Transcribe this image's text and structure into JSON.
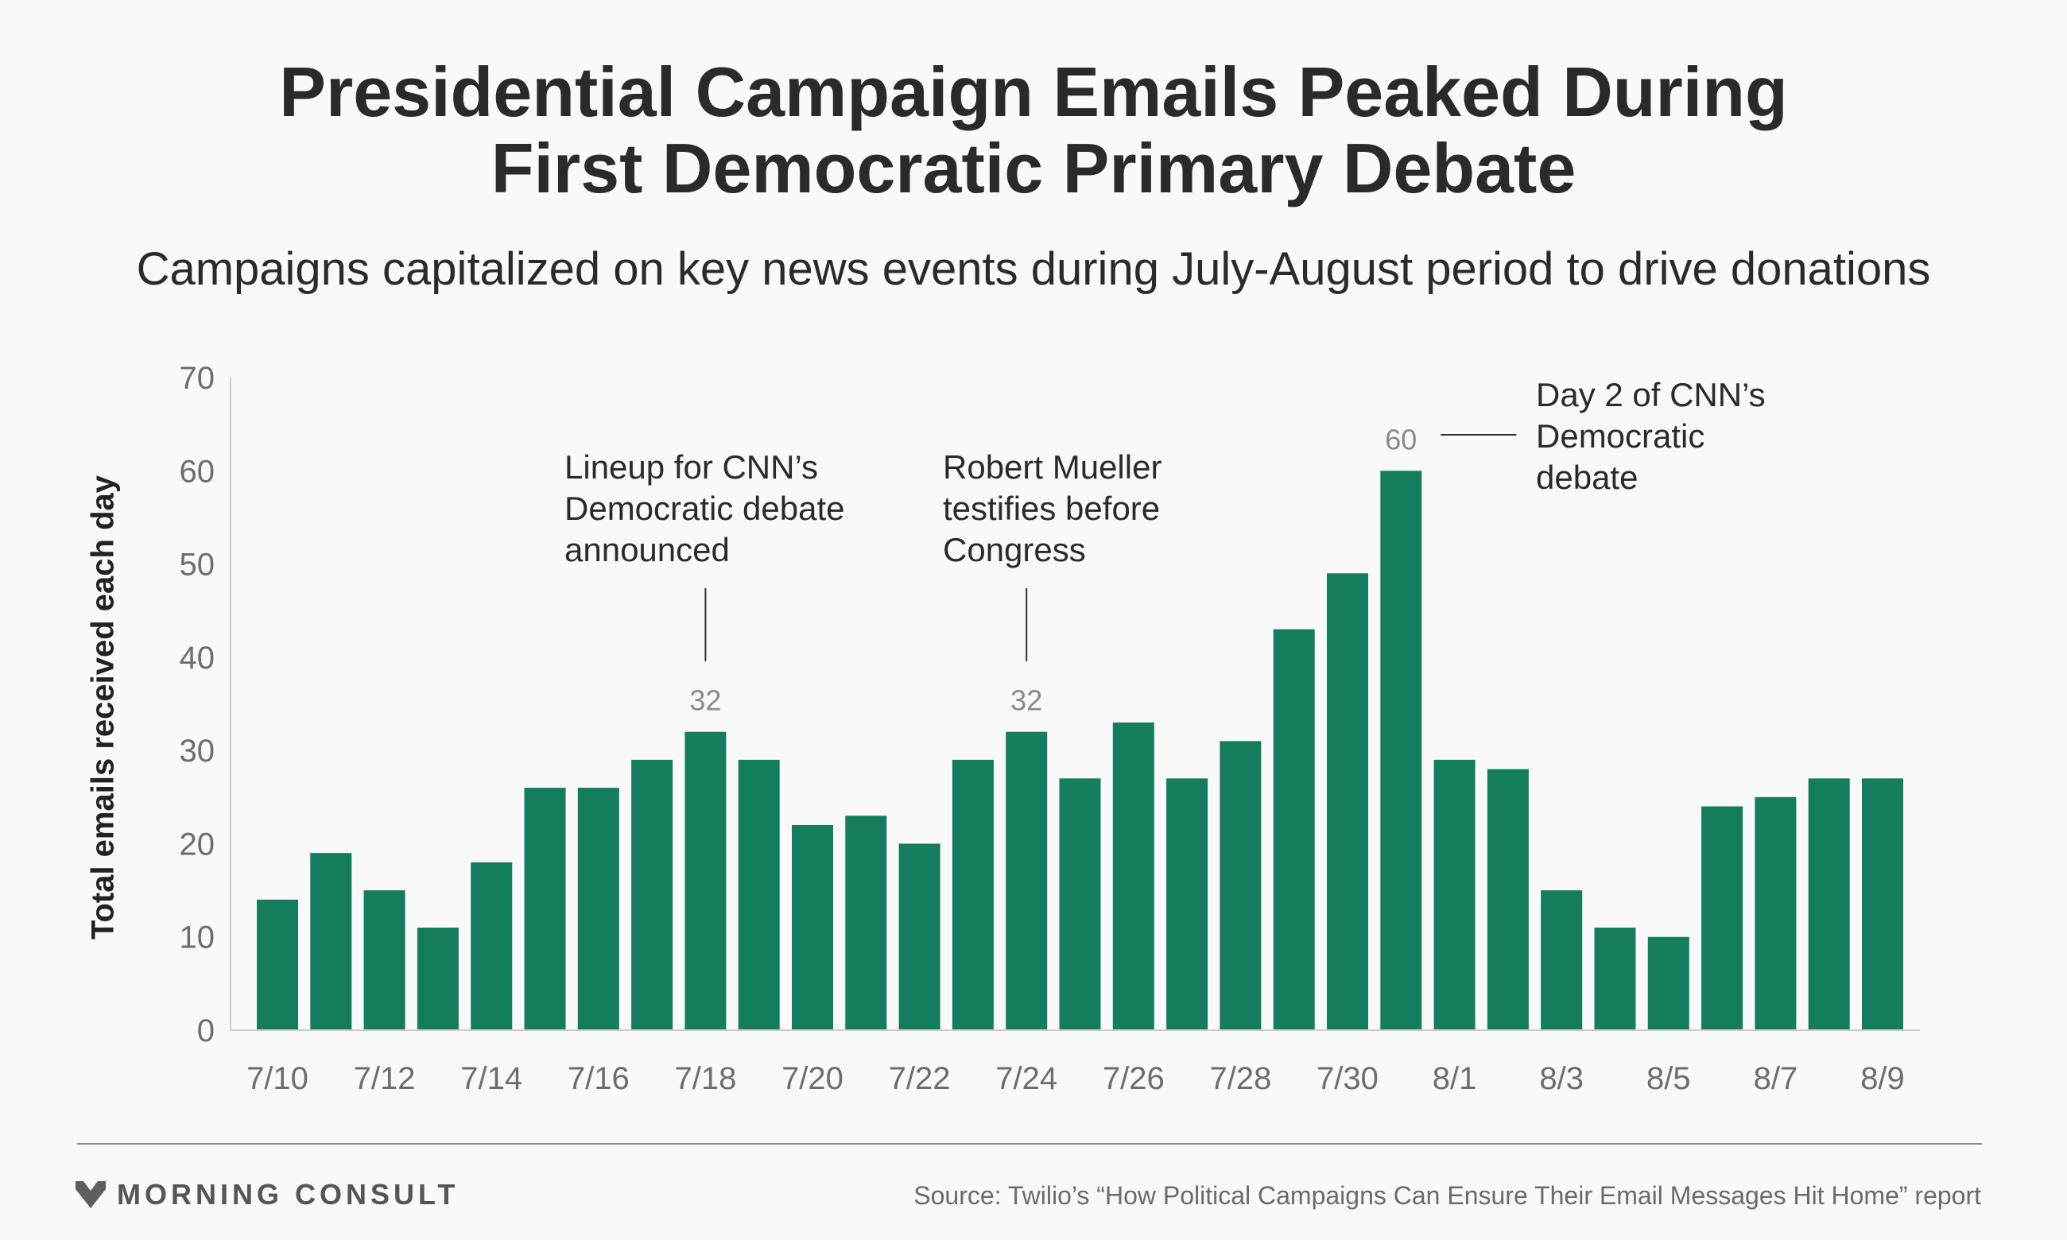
{
  "title_line1": "Presidential Campaign Emails Peaked During",
  "title_line2": "First Democratic Primary Debate",
  "subtitle": "Campaigns capitalized on key news events during July-August period to drive donations",
  "colors": {
    "bar": "#147d5e",
    "axis": "#cccccc",
    "background": "#f9f9f9"
  },
  "chart_data": {
    "type": "bar",
    "ylabel": "Total emails received each day",
    "ylim": [
      0,
      70
    ],
    "yticks": [
      0,
      10,
      20,
      30,
      40,
      50,
      60,
      70
    ],
    "categories": [
      "7/10",
      "7/11",
      "7/12",
      "7/13",
      "7/14",
      "7/15",
      "7/16",
      "7/17",
      "7/18",
      "7/19",
      "7/20",
      "7/21",
      "7/22",
      "7/23",
      "7/24",
      "7/25",
      "7/26",
      "7/27",
      "7/28",
      "7/29",
      "7/30",
      "7/31",
      "8/1",
      "8/2",
      "8/3",
      "8/4",
      "8/5",
      "8/6",
      "8/7",
      "8/8",
      "8/9"
    ],
    "xtick_labels": [
      "7/10",
      "7/12",
      "7/14",
      "7/16",
      "7/18",
      "7/20",
      "7/22",
      "7/24",
      "7/26",
      "7/28",
      "7/30",
      "8/1",
      "8/3",
      "8/5",
      "8/7",
      "8/9"
    ],
    "values": [
      14,
      19,
      15,
      11,
      18,
      26,
      26,
      29,
      32,
      29,
      22,
      23,
      20,
      29,
      32,
      27,
      33,
      27,
      31,
      43,
      49,
      60,
      29,
      28,
      15,
      11,
      10,
      24,
      25,
      27,
      27
    ],
    "data_labels": [
      {
        "category": "7/18",
        "text": "32"
      },
      {
        "category": "7/24",
        "text": "32"
      },
      {
        "category": "7/31",
        "text": "60"
      }
    ],
    "annotations": [
      {
        "category": "7/18",
        "text": "Lineup for CNN’s\nDemocratic debate\nannounced"
      },
      {
        "category": "7/24",
        "text": "Robert Mueller\ntestifies before\nCongress"
      },
      {
        "category": "7/31",
        "text": "Day 2 of CNN’s\nDemocratic\ndebate"
      }
    ]
  },
  "footer": {
    "brand": "MORNING CONSULT",
    "source": "Source: Twilio’s “How Political Campaigns Can Ensure Their Email Messages Hit Home” report"
  }
}
